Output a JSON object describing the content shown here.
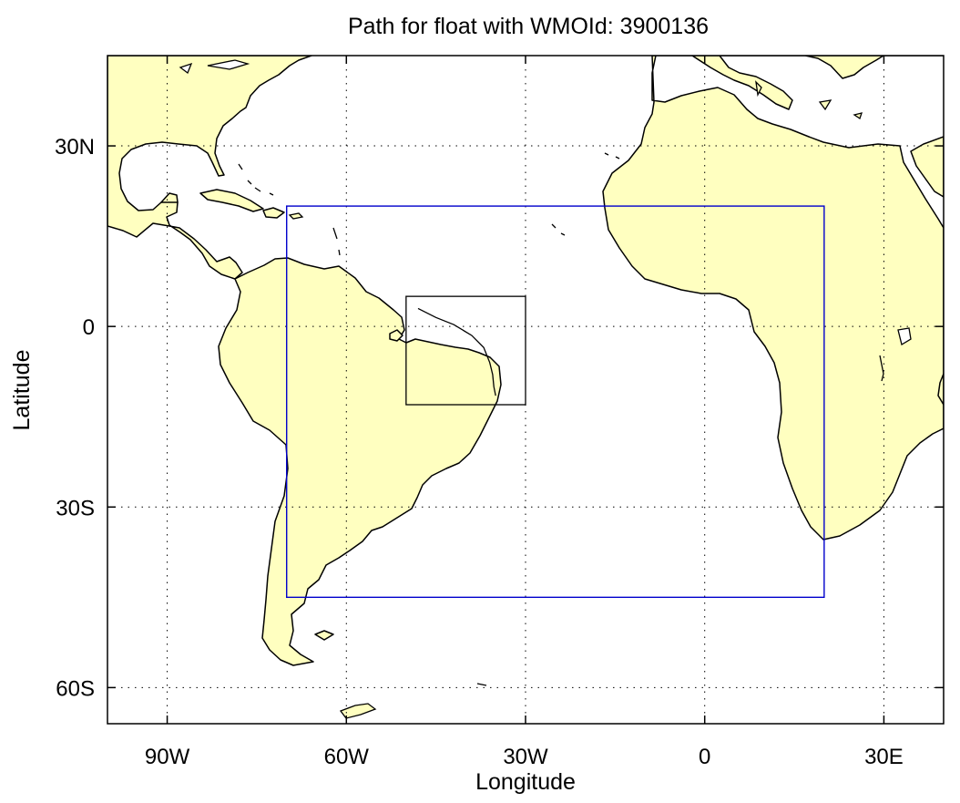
{
  "title": "Path for float with WMOId: 3900136",
  "chart_data": {
    "type": "map",
    "title": "Path for float with WMOId: 3900136",
    "xlabel": "Longitude",
    "ylabel": "Latitude",
    "lon_range": [
      -100,
      40
    ],
    "lat_range": [
      -66,
      45
    ],
    "lon_ticks": [
      {
        "value": -90,
        "label": "90W"
      },
      {
        "value": -60,
        "label": "60W"
      },
      {
        "value": -30,
        "label": "30W"
      },
      {
        "value": 0,
        "label": "0"
      },
      {
        "value": 30,
        "label": "30E"
      }
    ],
    "lat_ticks": [
      {
        "value": 30,
        "label": "30N"
      },
      {
        "value": 0,
        "label": "0"
      },
      {
        "value": -30,
        "label": "30S"
      },
      {
        "value": -60,
        "label": "60S"
      }
    ],
    "grid": "dotted",
    "land_color": "#ffffc0",
    "coast_color": "#000000",
    "region_box": {
      "lon_min": -70,
      "lon_max": 20,
      "lat_min": -45,
      "lat_max": 20,
      "color": "#0000cc"
    },
    "zoom_box": {
      "lon_min": -50,
      "lon_max": -30,
      "lat_min": -13,
      "lat_max": 5,
      "color": "#000000"
    },
    "float_path": {
      "lon": [
        -48,
        -45,
        -42,
        -39,
        -37,
        -36,
        -35.5,
        -35.3,
        -35
      ],
      "lat": [
        3,
        1.5,
        0.3,
        -1.5,
        -3.5,
        -6,
        -8,
        -10,
        -11.5
      ],
      "color": "#000000"
    }
  }
}
